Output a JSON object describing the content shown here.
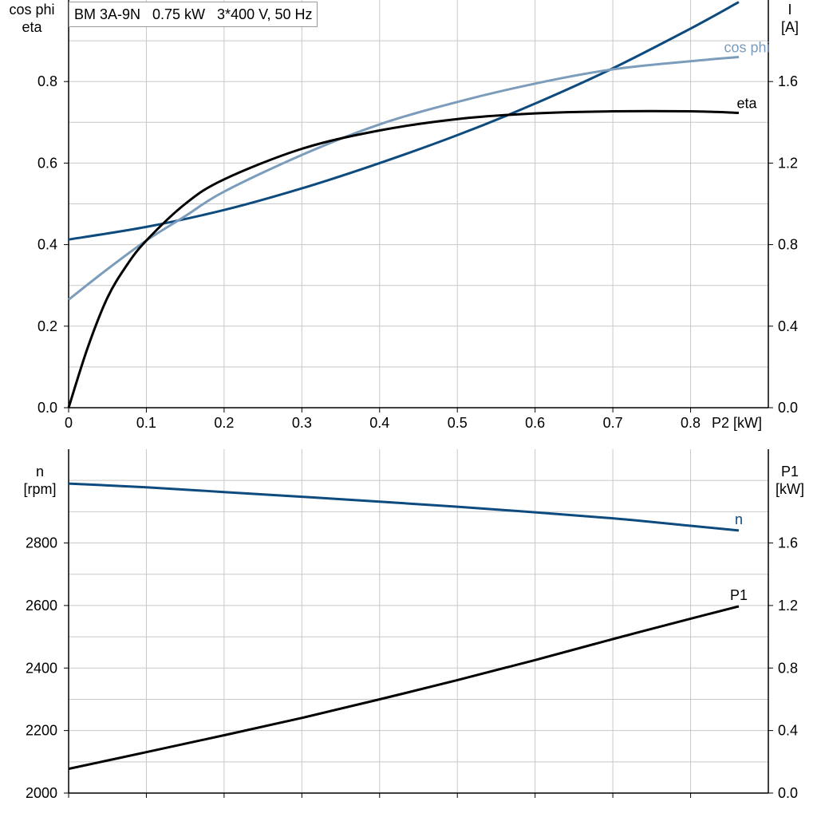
{
  "title": "BM 3A-9N   0.75 kW   3*400 V, 50 Hz",
  "chart_data": [
    {
      "type": "line",
      "xlabel": "P2 [kW]",
      "xlim": [
        0,
        0.9
      ],
      "xticks": [
        0,
        0.1,
        0.2,
        0.3,
        0.4,
        0.5,
        0.6,
        0.7,
        0.8
      ],
      "left_axis": {
        "label_lines": [
          "cos phi",
          "eta"
        ],
        "ylim": [
          0,
          1.0
        ],
        "ticks": [
          0.0,
          0.2,
          0.4,
          0.6,
          0.8
        ]
      },
      "right_axis": {
        "label_lines": [
          "I",
          "[A]"
        ],
        "ylim": [
          0,
          2.0
        ],
        "ticks": [
          0.0,
          0.4,
          0.8,
          1.2,
          1.6
        ]
      },
      "grid": true,
      "series": [
        {
          "name": "I",
          "axis": "right",
          "color": "#0d4a7e",
          "x": [
            0,
            0.1,
            0.2,
            0.3,
            0.4,
            0.5,
            0.6,
            0.7,
            0.8,
            0.862
          ],
          "y": [
            0.825,
            0.887,
            0.97,
            1.076,
            1.2,
            1.337,
            1.492,
            1.665,
            1.86,
            1.99
          ]
        },
        {
          "name": "cos phi",
          "axis": "left",
          "color": "#7c9cbc",
          "x": [
            0,
            0.05,
            0.1,
            0.15,
            0.2,
            0.3,
            0.4,
            0.5,
            0.6,
            0.7,
            0.8,
            0.862
          ],
          "y": [
            0.265,
            0.34,
            0.41,
            0.47,
            0.53,
            0.62,
            0.695,
            0.75,
            0.795,
            0.83,
            0.85,
            0.86
          ]
        },
        {
          "name": "eta",
          "axis": "left",
          "color": "#000000",
          "x": [
            0,
            0.025,
            0.05,
            0.075,
            0.1,
            0.15,
            0.2,
            0.3,
            0.4,
            0.5,
            0.6,
            0.7,
            0.8,
            0.862
          ],
          "y": [
            0,
            0.15,
            0.27,
            0.35,
            0.41,
            0.5,
            0.56,
            0.635,
            0.68,
            0.708,
            0.722,
            0.727,
            0.727,
            0.723
          ]
        }
      ]
    },
    {
      "type": "line",
      "xlim": [
        0,
        0.9
      ],
      "xticks": [
        0,
        0.1,
        0.2,
        0.3,
        0.4,
        0.5,
        0.6,
        0.7,
        0.8
      ],
      "left_axis": {
        "label_lines": [
          "n",
          "[rpm]"
        ],
        "ylim": [
          2000,
          3100
        ],
        "ticks": [
          2000,
          2200,
          2400,
          2600,
          2800
        ]
      },
      "right_axis": {
        "label_lines": [
          "P1",
          "[kW]"
        ],
        "ylim": [
          0,
          2.2
        ],
        "ticks": [
          0.0,
          0.4,
          0.8,
          1.2,
          1.6
        ]
      },
      "grid": true,
      "series": [
        {
          "name": "n",
          "axis": "left",
          "color": "#0d4a7e",
          "x": [
            0,
            0.1,
            0.2,
            0.3,
            0.4,
            0.5,
            0.6,
            0.7,
            0.8,
            0.862
          ],
          "y": [
            2990,
            2978,
            2963,
            2948,
            2932,
            2916,
            2898,
            2879,
            2855,
            2840
          ]
        },
        {
          "name": "P1",
          "axis": "right",
          "color": "#000000",
          "x": [
            0,
            0.1,
            0.2,
            0.3,
            0.4,
            0.5,
            0.6,
            0.7,
            0.8,
            0.862
          ],
          "y": [
            0.155,
            0.262,
            0.37,
            0.481,
            0.6,
            0.723,
            0.851,
            0.985,
            1.116,
            1.195
          ]
        }
      ]
    }
  ]
}
